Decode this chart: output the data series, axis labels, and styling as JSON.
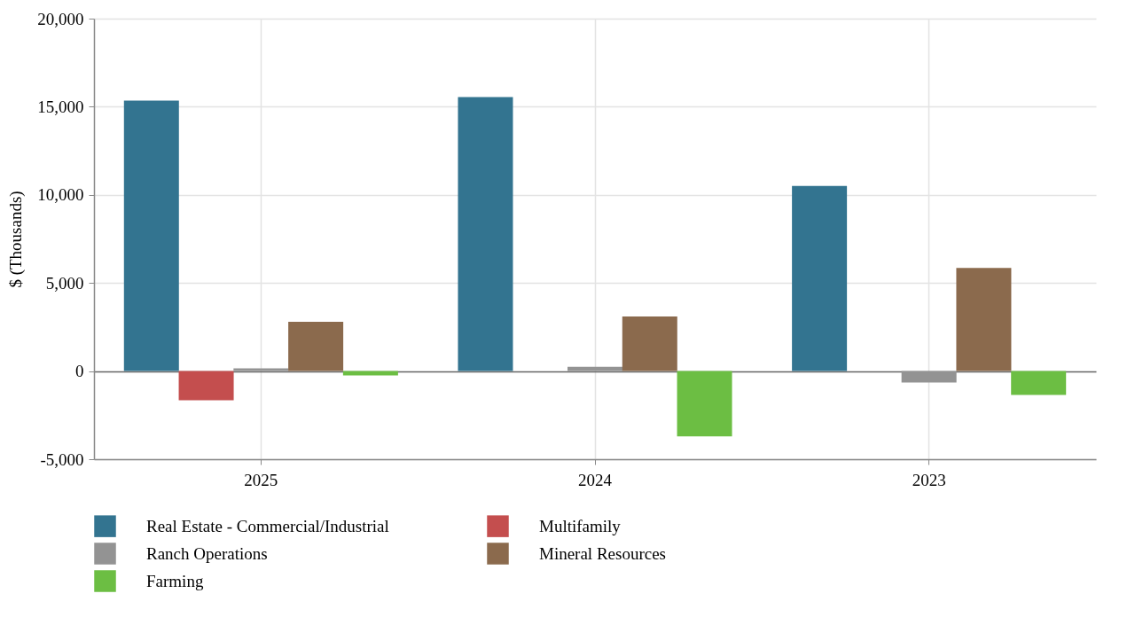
{
  "chart_data": {
    "type": "bar",
    "ylabel": "$ (Thousands)",
    "categories": [
      "2025",
      "2024",
      "2023"
    ],
    "series": [
      {
        "name": "Real Estate - Commercial/Industrial",
        "color": "#337490",
        "values": [
          15350,
          15550,
          10500
        ]
      },
      {
        "name": "Multifamily",
        "color": "#c44e4e",
        "values": [
          -1650,
          null,
          null
        ]
      },
      {
        "name": "Ranch Operations",
        "color": "#939393",
        "values": [
          150,
          250,
          -650
        ]
      },
      {
        "name": "Mineral Resources",
        "color": "#8b6a4d",
        "values": [
          2800,
          3100,
          5850
        ]
      },
      {
        "name": "Farming",
        "color": "#6cbe43",
        "values": [
          -250,
          -3700,
          -1350
        ]
      }
    ],
    "ylim": [
      -5000,
      20000
    ],
    "yticks": [
      {
        "value": -5000,
        "label": "-5,000"
      },
      0,
      {
        "value": 5000,
        "label": "5,000"
      },
      {
        "value": 10000,
        "label": "10,000"
      },
      {
        "value": 15000,
        "label": "15,000"
      },
      {
        "value": 20000,
        "label": "20,000"
      }
    ],
    "grid": true,
    "legend": "bottom"
  }
}
